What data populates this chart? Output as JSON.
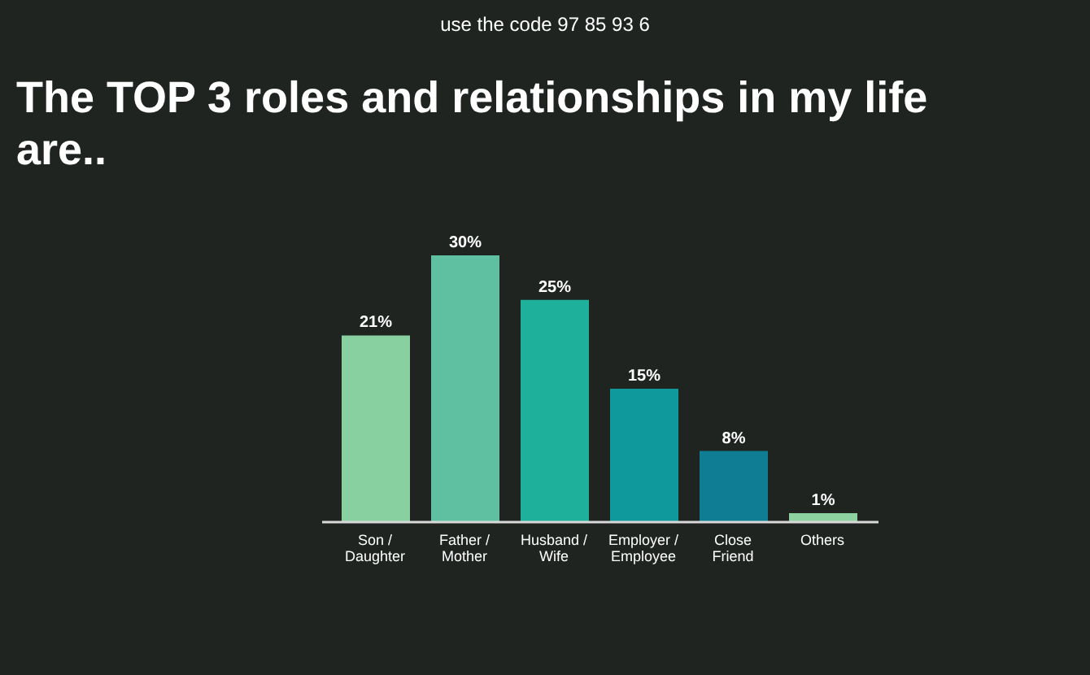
{
  "chart_data": {
    "type": "bar",
    "title": "The TOP 3 roles and relationships in my life are..",
    "annotations": [
      "use the code 97 85 93 6"
    ],
    "categories": [
      "Son / Daughter",
      "Father / Mother",
      "Husband / Wife",
      "Employer / Employee",
      "Close Friend",
      "Others"
    ],
    "values": [
      21,
      30,
      25,
      15,
      8,
      1
    ],
    "colors": [
      "#88d0a0",
      "#5ec0a0",
      "#1fb09b",
      "#10999d",
      "#0f7e95",
      "#8dd1a0"
    ],
    "value_labels": [
      "21%",
      "30%",
      "25%",
      "15%",
      "8%",
      "1%"
    ]
  }
}
